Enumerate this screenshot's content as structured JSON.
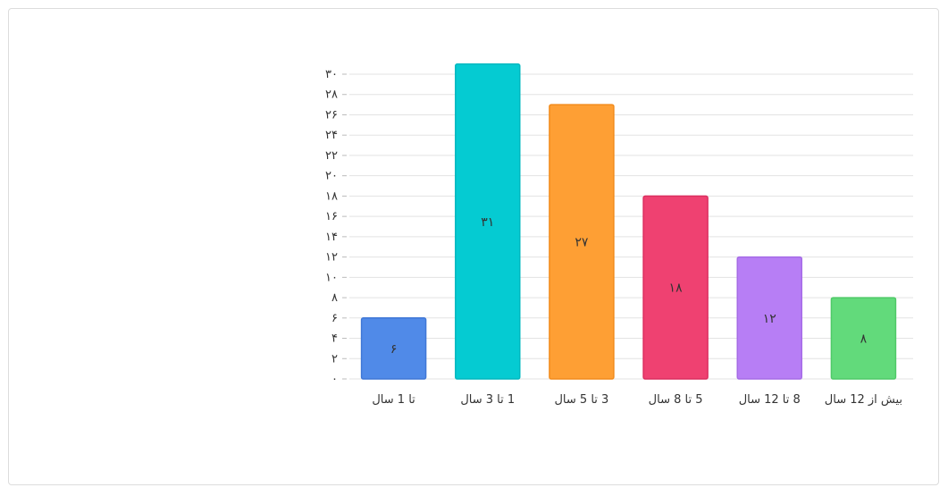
{
  "chart_data": {
    "type": "bar",
    "categories": [
      "تا 1 سال",
      "1 تا 3 سال",
      "3 تا 5 سال",
      "5 تا 8 سال",
      "8 تا 12 سال",
      "بیش از 12 سال"
    ],
    "values": [
      6,
      31,
      27,
      18,
      12,
      8
    ],
    "value_labels": [
      "۶",
      "۳۱",
      "۲۷",
      "۱۸",
      "۱۲",
      "۸"
    ],
    "colors": [
      "#508ae8",
      "#05cbd2",
      "#fe9f34",
      "#ef4171",
      "#b77ef5",
      "#62da7b"
    ],
    "border_colors": [
      "#3f77d6",
      "#00b8c0",
      "#f28c1c",
      "#dc2e5f",
      "#a56be6",
      "#4fc968"
    ],
    "ylim": [
      0,
      30
    ],
    "yticks": [
      0,
      2,
      4,
      6,
      8,
      10,
      12,
      14,
      16,
      18,
      20,
      22,
      24,
      26,
      28,
      30
    ],
    "ytick_labels": [
      "۰",
      "۲",
      "۴",
      "۶",
      "۸",
      "۱۰",
      "۱۲",
      "۱۴",
      "۱۶",
      "۱۸",
      "۲۰",
      "۲۲",
      "۲۴",
      "۲۶",
      "۲۸",
      "۳۰"
    ],
    "grid": true,
    "title": "",
    "xlabel": "",
    "ylabel": ""
  }
}
